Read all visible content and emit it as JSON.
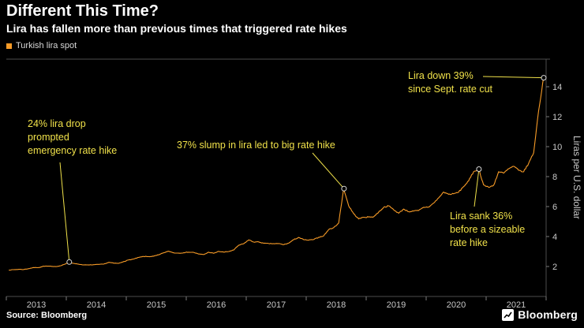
{
  "header": {
    "title": "Different This Time?",
    "subtitle": "Lira has fallen more than previous times that triggered rate hikes"
  },
  "legend": {
    "label": "Turkish lira spot"
  },
  "footer": {
    "source": "Source: Bloomberg",
    "logo": "Bloomberg"
  },
  "colors": {
    "background": "#000000",
    "line": "#f79b27",
    "annotation": "#f0e14a",
    "axis": "#4d4d4d",
    "tick_mark": "#7a7a7a",
    "tick_text": "#c8c8c8",
    "marker_stroke": "#d9d9d9"
  },
  "chart_data": {
    "type": "line",
    "title": "Different This Time?",
    "subtitle": "Lira has fallen more than previous times that triggered rate hikes",
    "ylabel": "Liras per U.S. dollar",
    "ylim": [
      0,
      15.8
    ],
    "y_ticks": [
      2,
      4,
      6,
      8,
      10,
      12,
      14
    ],
    "x_years": [
      "2013",
      "2014",
      "2015",
      "2016",
      "2017",
      "2018",
      "2019",
      "2020",
      "2021"
    ],
    "grid": false,
    "legend_position": "top-left",
    "series": [
      {
        "name": "Turkish lira spot",
        "x_start_year": 2013,
        "points_per_year": 12,
        "values": [
          1.76,
          1.79,
          1.81,
          1.8,
          1.86,
          1.93,
          1.93,
          2.02,
          2.02,
          1.99,
          2.02,
          2.13,
          2.27,
          2.21,
          2.15,
          2.11,
          2.1,
          2.12,
          2.14,
          2.16,
          2.28,
          2.22,
          2.21,
          2.33,
          2.44,
          2.5,
          2.61,
          2.67,
          2.66,
          2.69,
          2.78,
          2.92,
          3.02,
          2.91,
          2.89,
          2.92,
          2.96,
          2.94,
          2.83,
          2.8,
          2.95,
          2.88,
          3.01,
          2.96,
          3.0,
          3.1,
          3.42,
          3.52,
          3.78,
          3.63,
          3.64,
          3.55,
          3.53,
          3.52,
          3.53,
          3.46,
          3.56,
          3.79,
          3.94,
          3.79,
          3.76,
          3.8,
          3.95,
          4.05,
          4.47,
          4.59,
          4.91,
          7.2,
          6.05,
          5.52,
          5.18,
          5.29,
          5.3,
          5.32,
          5.63,
          5.95,
          6.05,
          5.79,
          5.56,
          5.83,
          5.66,
          5.7,
          5.74,
          5.95,
          5.97,
          6.23,
          6.58,
          6.97,
          6.82,
          6.85,
          6.97,
          7.34,
          7.71,
          8.33,
          8.52,
          7.44,
          7.28,
          7.42,
          8.32,
          8.23,
          8.52,
          8.69,
          8.42,
          8.32,
          8.88,
          9.59,
          12.4,
          14.6
        ]
      }
    ],
    "annotations": [
      {
        "id": "a1",
        "lines": [
          "24% lira drop",
          "prompted",
          "emergency rate hike"
        ],
        "marker": {
          "year": 2014.05,
          "value": 2.3
        }
      },
      {
        "id": "a2",
        "lines": [
          "37% slump in lira led to big rate hike"
        ],
        "marker": {
          "year": 2018.63,
          "value": 7.2
        }
      },
      {
        "id": "a3",
        "lines": [
          "Lira down 39%",
          "since Sept. rate cut"
        ],
        "marker": {
          "year": 2021.96,
          "value": 14.6
        }
      },
      {
        "id": "a4",
        "lines": [
          "Lira sank 36%",
          "before a sizeable",
          "rate hike"
        ],
        "marker": {
          "year": 2020.88,
          "value": 8.5
        }
      }
    ]
  }
}
